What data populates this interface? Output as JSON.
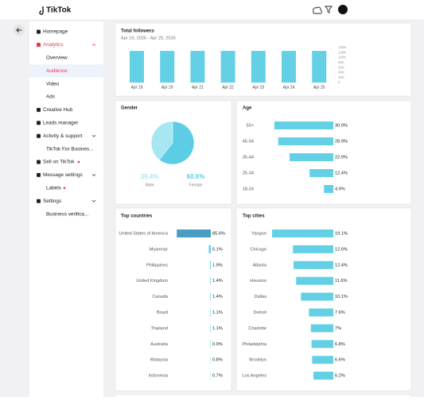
{
  "header": {
    "logo": "TikTok"
  },
  "nav": {
    "items": [
      "Homepage",
      "Analytics",
      "Overview",
      "Audience",
      "Video",
      "Ads",
      "Creative Hub",
      "Leads manager",
      "Activity & support",
      "TikTok For Busines...",
      "Sell on TikTok",
      "Message settings",
      "Labels",
      "Settings",
      "Business verifica..."
    ]
  },
  "followers": {
    "title": "Total followers",
    "subtitle": "Apr 19, 2026 - Apr 25, 2026",
    "categories": [
      "Apr 19",
      "Apr 20",
      "Apr 21",
      "Apr 22",
      "Apr 23",
      "Apr 24",
      "Apr 25"
    ],
    "values": [
      127000,
      127000,
      127000,
      127000,
      127000,
      127000,
      127000
    ],
    "color": "#63d0e6",
    "ylim": [
      0,
      140000
    ],
    "yticks": [
      0,
      {
        "value": 20000,
        "label": "20K"
      },
      {
        "value": 40000,
        "label": "40K"
      },
      {
        "value": 60000,
        "label": "60K"
      },
      {
        "value": 80000,
        "label": "80K"
      },
      {
        "value": 100000,
        "label": "100K"
      },
      {
        "value": 120000,
        "label": "120K"
      },
      {
        "value": 140000,
        "label": "140K"
      }
    ]
  },
  "gender": {
    "title": "Gender",
    "categories": [
      "Male",
      "Female"
    ],
    "values": [
      39.4,
      60.6
    ],
    "value_labels": [
      "39.4%",
      "60.6%"
    ],
    "colors": [
      "#a6e7f2",
      "#5ccde5"
    ]
  },
  "age": {
    "title": "Age",
    "categories": [
      "55+",
      "45-54",
      "35-44",
      "25-34",
      "18-24"
    ],
    "values": [
      30.9,
      28.9,
      22.9,
      12.4,
      4.9
    ],
    "value_labels": [
      "30.9%",
      "28.9%",
      "22.9%",
      "12.4%",
      "4.9%"
    ],
    "color": "#63d0e6"
  },
  "countries": {
    "title": "Top countries",
    "categories": [
      "United States of America",
      "Myanmar",
      "Philippines",
      "United Kingdom",
      "Canada",
      "Brazil",
      "Thailand",
      "Australia",
      "Malaysia",
      "Indonesia"
    ],
    "values": [
      85.6,
      5.1,
      1.9,
      1.4,
      1.4,
      1.1,
      1.1,
      0.9,
      0.8,
      0.7
    ],
    "value_labels": [
      "85.6%",
      "5.1%",
      "1.9%",
      "1.4%",
      "1.4%",
      "1.1%",
      "1.1%",
      "0.9%",
      "0.8%",
      "0.7%"
    ],
    "color": "#63d0e6",
    "highlight_color": "#4a9dc2"
  },
  "cities": {
    "title": "Top cities",
    "categories": [
      "Yangon",
      "Chicago",
      "Atlanta",
      "Houston",
      "Dallas",
      "Detroit",
      "Charlotte",
      "Philadelphia",
      "Brooklyn",
      "Los Angeles"
    ],
    "values": [
      19.1,
      12.6,
      12.4,
      11.6,
      10.1,
      7.6,
      7,
      6.8,
      6.6,
      6.2
    ],
    "value_labels": [
      "19.1%",
      "12.6%",
      "12.4%",
      "11.6%",
      "10.1%",
      "7.6%",
      "7%",
      "6.8%",
      "6.6%",
      "6.2%"
    ],
    "color": "#63d0e6"
  }
}
